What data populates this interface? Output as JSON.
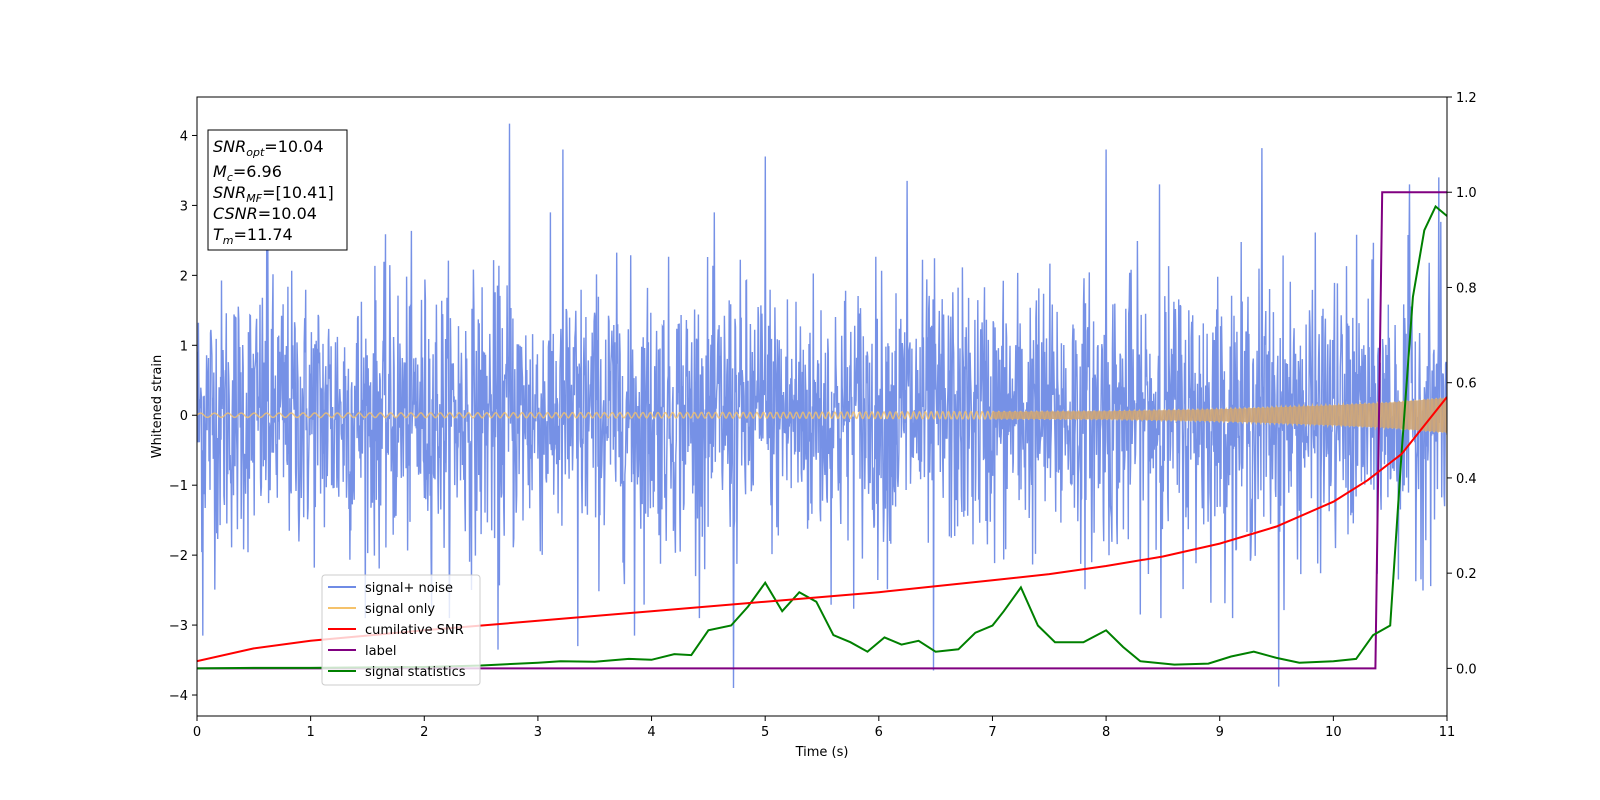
{
  "chart_data": {
    "type": "line",
    "title": "",
    "xlabel": "Time (s)",
    "ylabel": "Whitened strain",
    "xlim": [
      0,
      11
    ],
    "ylim": [
      -4.3,
      4.55
    ],
    "y2lim": [
      -0.1,
      1.2
    ],
    "grid": false,
    "legend_position": "lower-left",
    "x_ticks": [
      "0",
      "1",
      "2",
      "3",
      "4",
      "5",
      "6",
      "7",
      "8",
      "9",
      "10",
      "11"
    ],
    "y_ticks": [
      "−4",
      "−3",
      "−2",
      "−1",
      "0",
      "1",
      "2",
      "3",
      "4"
    ],
    "y2_ticks": [
      "0.0",
      "0.2",
      "0.4",
      "0.6",
      "0.8",
      "1.0",
      "1.2"
    ],
    "annotation": [
      {
        "main": "SNR",
        "sub": "opt",
        "rest": "=10.04"
      },
      {
        "main": "M",
        "sub": "c",
        "rest": "=6.96"
      },
      {
        "main": "SNR",
        "sub": "MF",
        "rest": "=[10.41]"
      },
      {
        "main": "CSNR",
        "sub": "",
        "rest": "=10.04"
      },
      {
        "main": "T",
        "sub": "m",
        "rest": "=11.74"
      }
    ],
    "series": [
      {
        "name": "signal+ noise",
        "color": "#6f8be5",
        "axis": "left",
        "description_values": {
          "std": 1.0,
          "max": 4.17,
          "min": -3.9
        },
        "spikes": [
          [
            0.62,
            3.0
          ],
          [
            2.75,
            4.17
          ],
          [
            3.22,
            3.8
          ],
          [
            4.72,
            3.8
          ],
          [
            5.0,
            3.7
          ],
          [
            6.25,
            3.35
          ],
          [
            8.0,
            3.8
          ],
          [
            8.47,
            3.3
          ],
          [
            9.37,
            3.82
          ],
          [
            10.67,
            3.3
          ],
          [
            10.93,
            3.4
          ],
          [
            0.05,
            -3.15
          ],
          [
            4.72,
            -3.9
          ],
          [
            6.48,
            -3.65
          ],
          [
            9.52,
            -3.88
          ],
          [
            2.65,
            -3.35
          ],
          [
            3.35,
            -3.3
          ],
          [
            3.85,
            -3.15
          ]
        ]
      },
      {
        "name": "signal only",
        "color": "#f5c26b",
        "axis": "left",
        "envelope": [
          [
            0,
            0.03
          ],
          [
            5,
            0.04
          ],
          [
            8,
            0.06
          ],
          [
            9,
            0.09
          ],
          [
            10,
            0.15
          ],
          [
            10.5,
            0.19
          ],
          [
            11,
            0.26
          ]
        ]
      },
      {
        "name": "cumilative SNR",
        "color": "#ff0000",
        "axis": "right",
        "x": [
          0,
          0.5,
          1,
          2,
          3,
          4,
          5,
          6,
          7,
          7.5,
          8,
          8.5,
          9,
          9.5,
          10,
          10.3,
          10.6,
          11
        ],
        "y": [
          0.015,
          0.042,
          0.058,
          0.08,
          0.1,
          0.12,
          0.14,
          0.16,
          0.185,
          0.198,
          0.215,
          0.235,
          0.262,
          0.298,
          0.35,
          0.395,
          0.45,
          0.57
        ]
      },
      {
        "name": "label",
        "color": "#800080",
        "axis": "right",
        "x": [
          0,
          10.37,
          10.43,
          11
        ],
        "y": [
          0,
          0,
          1,
          1
        ]
      },
      {
        "name": "signal statistics",
        "color": "#008000",
        "axis": "right",
        "x": [
          0,
          0.5,
          1,
          1.5,
          2,
          2.5,
          3,
          3.2,
          3.5,
          3.8,
          4.0,
          4.2,
          4.35,
          4.5,
          4.7,
          4.85,
          5.0,
          5.15,
          5.3,
          5.45,
          5.6,
          5.75,
          5.9,
          6.05,
          6.2,
          6.35,
          6.5,
          6.7,
          6.85,
          7.0,
          7.1,
          7.25,
          7.4,
          7.55,
          7.8,
          8.0,
          8.15,
          8.3,
          8.6,
          8.9,
          9.1,
          9.3,
          9.5,
          9.7,
          10.0,
          10.2,
          10.35,
          10.5,
          10.6,
          10.7,
          10.8,
          10.9,
          11.0
        ],
        "y": [
          0.0,
          0.001,
          0.001,
          0.002,
          0.003,
          0.006,
          0.012,
          0.015,
          0.014,
          0.02,
          0.018,
          0.03,
          0.028,
          0.08,
          0.09,
          0.13,
          0.18,
          0.12,
          0.16,
          0.14,
          0.07,
          0.055,
          0.035,
          0.065,
          0.05,
          0.058,
          0.035,
          0.04,
          0.075,
          0.09,
          0.12,
          0.17,
          0.09,
          0.055,
          0.055,
          0.08,
          0.045,
          0.015,
          0.008,
          0.01,
          0.025,
          0.035,
          0.022,
          0.012,
          0.015,
          0.02,
          0.07,
          0.09,
          0.45,
          0.78,
          0.92,
          0.97,
          0.95
        ]
      }
    ]
  }
}
